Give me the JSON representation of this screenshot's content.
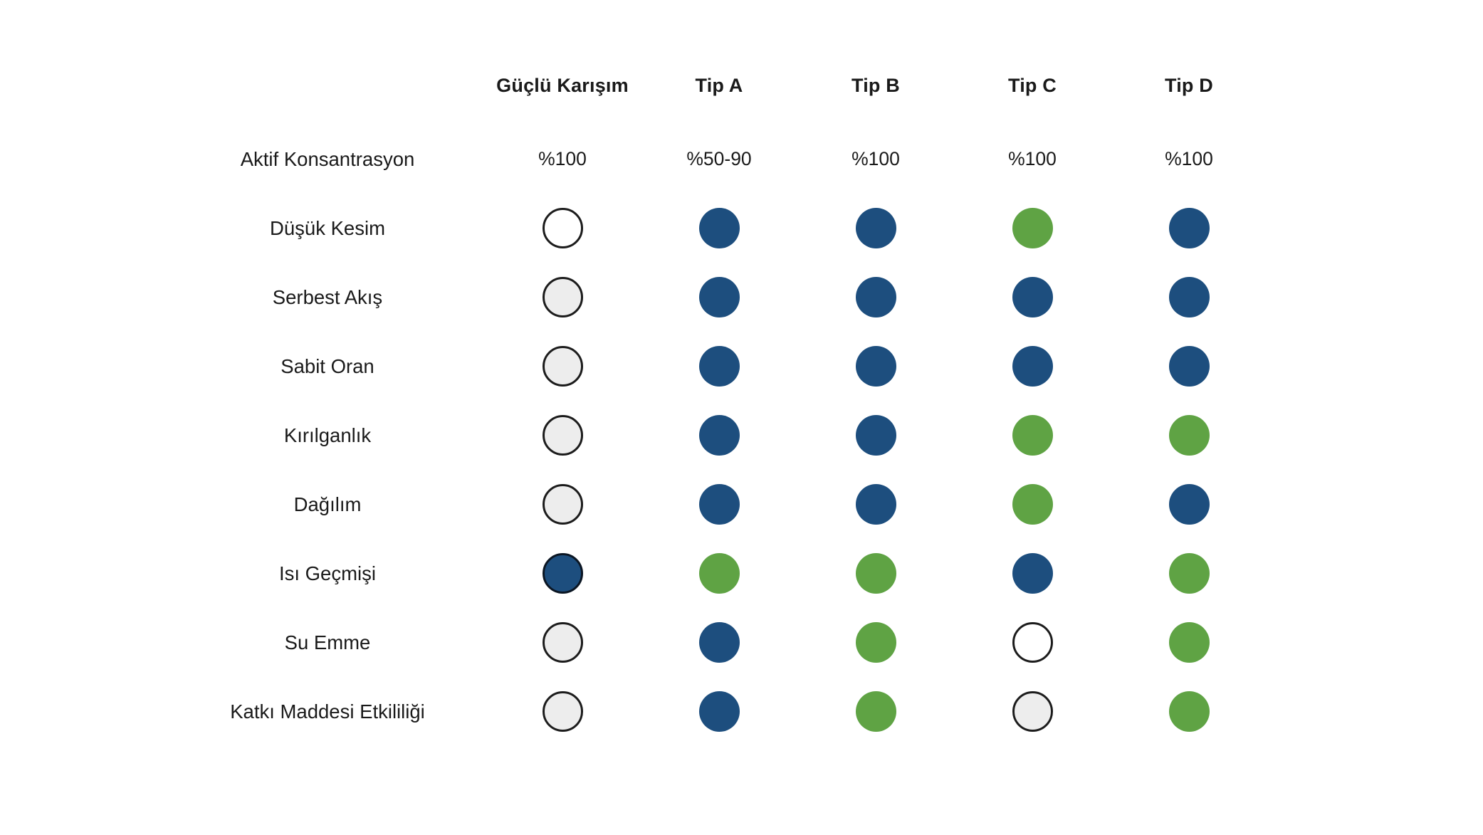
{
  "page": {
    "background": "#FFFFFF"
  },
  "colors": {
    "text": "#1A1A1A",
    "dot_blue": "#1D4E7E",
    "dot_green": "#5FA344",
    "dot_gray_fill": "#EDEDED",
    "dot_white_fill": "#FFFFFF",
    "dot_outline": "#1C1C1C",
    "dot_blue_dark_outline": "#0B1623"
  },
  "matrix": {
    "corner_label": "",
    "columns": [
      "Güçlü Karışım",
      "Tip A",
      "Tip B",
      "Tip C",
      "Tip D"
    ],
    "concentration": {
      "label": "Aktif Konsantrasyon",
      "values": [
        "%100",
        "%50-90",
        "%100",
        "%100",
        "%100"
      ]
    },
    "rows": [
      {
        "label": "Düşük Kesim",
        "dots": [
          "white",
          "blue",
          "blue",
          "green",
          "blue"
        ]
      },
      {
        "label": "Serbest Akış",
        "dots": [
          "gray",
          "blue",
          "blue",
          "blue",
          "blue"
        ]
      },
      {
        "label": "Sabit Oran",
        "dots": [
          "gray",
          "blue",
          "blue",
          "blue",
          "blue"
        ]
      },
      {
        "label": "Kırılganlık",
        "dots": [
          "gray",
          "blue",
          "blue",
          "green",
          "green"
        ]
      },
      {
        "label": "Dağılım",
        "dots": [
          "gray",
          "blue",
          "blue",
          "green",
          "blue"
        ]
      },
      {
        "label": "Isı Geçmişi",
        "dots": [
          "blue_dark",
          "green",
          "green",
          "blue",
          "green"
        ]
      },
      {
        "label": "Su Emme",
        "dots": [
          "gray",
          "blue",
          "green",
          "white",
          "green"
        ]
      },
      {
        "label": "Katkı Maddesi Etkililiği",
        "dots": [
          "gray",
          "blue",
          "green",
          "gray",
          "green"
        ]
      }
    ]
  },
  "chart_data": {
    "type": "table",
    "title": "",
    "columns": [
      "",
      "Güçlü Karışım",
      "Tip A",
      "Tip B",
      "Tip C",
      "Tip D"
    ],
    "rows": [
      [
        "Aktif Konsantrasyon",
        "%100",
        "%50-90",
        "%100",
        "%100",
        "%100"
      ],
      [
        "Düşük Kesim",
        "outlined-white",
        "filled-blue",
        "filled-blue",
        "filled-green",
        "filled-blue"
      ],
      [
        "Serbest Akış",
        "outlined-gray",
        "filled-blue",
        "filled-blue",
        "filled-blue",
        "filled-blue"
      ],
      [
        "Sabit Oran",
        "outlined-gray",
        "filled-blue",
        "filled-blue",
        "filled-blue",
        "filled-blue"
      ],
      [
        "Kırılganlık",
        "outlined-gray",
        "filled-blue",
        "filled-blue",
        "filled-green",
        "filled-green"
      ],
      [
        "Dağılım",
        "outlined-gray",
        "filled-blue",
        "filled-blue",
        "filled-green",
        "filled-blue"
      ],
      [
        "Isı Geçmişi",
        "filled-blue-outlined",
        "filled-green",
        "filled-green",
        "filled-blue",
        "filled-green"
      ],
      [
        "Su Emme",
        "outlined-gray",
        "filled-blue",
        "filled-green",
        "outlined-white",
        "filled-green"
      ],
      [
        "Katkı Maddesi Etkililiği",
        "outlined-gray",
        "filled-blue",
        "filled-green",
        "outlined-gray",
        "filled-green"
      ]
    ],
    "legend": {
      "filled-blue": "#1D4E7E",
      "filled-green": "#5FA344",
      "outlined-gray": "#EDEDED",
      "outlined-white": "#FFFFFF",
      "filled-blue-outlined": "#1D4E7E"
    },
    "layout": {
      "grid": false,
      "legend_position": "none"
    }
  }
}
